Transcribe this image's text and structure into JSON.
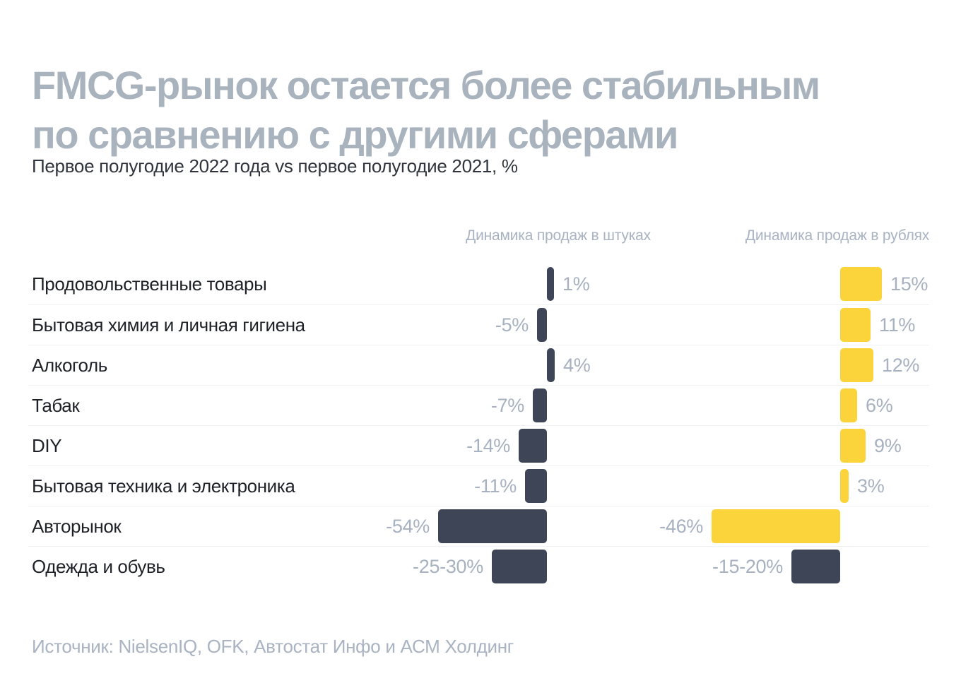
{
  "header": {
    "title_line1": "FMCG-рынок остается более стабильным",
    "title_line2": "по сравнению с другими сферами",
    "subtitle": "Первое полугодие 2022 года vs первое полугодие 2021, %"
  },
  "chart_data": {
    "type": "bar",
    "orientation": "horizontal",
    "title": "FMCG-рынок остается более стабильным по сравнению с другими сферами",
    "subtitle": "Первое полугодие 2022 года vs первое полугодие 2021, %",
    "unit": "%",
    "column_headers": [
      "Динамика продаж в штуках",
      "Динамика продаж в рублях"
    ],
    "categories": [
      "Продовольственные товары",
      "Бытовая химия и личная гигиена",
      "Алкоголь",
      "Табак",
      "DIY",
      "Бытовая техника и электроника",
      "Авторынок",
      "Одежда и обувь"
    ],
    "series": [
      {
        "name": "Динамика продаж в штуках",
        "values": [
          1,
          -5,
          4,
          -7,
          -14,
          -11,
          -54,
          -27.5
        ],
        "labels": [
          "1%",
          "-5%",
          "4%",
          "-7%",
          "-14%",
          "-11%",
          "-54%",
          "-25-30%"
        ],
        "bar_colors": [
          "dark",
          "dark",
          "dark",
          "dark",
          "dark",
          "dark",
          "dark",
          "dark"
        ]
      },
      {
        "name": "Динамика продаж в рублях",
        "values": [
          15,
          11,
          12,
          6,
          9,
          3,
          -46,
          -17.5
        ],
        "labels": [
          "15%",
          "11%",
          "12%",
          "6%",
          "9%",
          "3%",
          "-46%",
          "-15-20%"
        ],
        "bar_colors": [
          "yellow",
          "yellow",
          "yellow",
          "yellow",
          "yellow",
          "yellow",
          "yellow",
          "dark"
        ]
      }
    ]
  },
  "source": "Источник: NielsenIQ, OFK, Автостат Инфо и АСМ Холдинг",
  "colors": {
    "dark": "#3d4557",
    "yellow": "#fbd43b",
    "title": "#a9b3be",
    "muted": "#a7b1c0",
    "text": "#1e2228",
    "divider": "#f0f1f3",
    "background": "#ffffff"
  }
}
